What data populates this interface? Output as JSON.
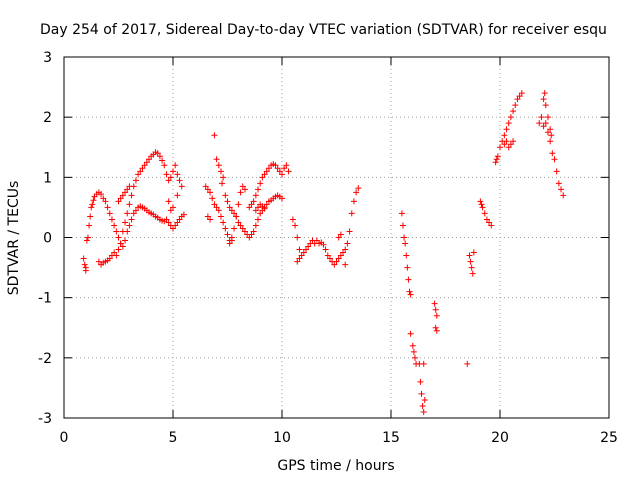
{
  "chart_data": {
    "type": "scatter",
    "title": "Day 254 of 2017, Sidereal Day-to-day VTEC variation (SDTVAR) for receiver esqu",
    "xlabel": "GPS time / hours",
    "ylabel": "SDTVAR / TECUs",
    "xlim": [
      0,
      25
    ],
    "ylim": [
      -3,
      3
    ],
    "xticks": [
      0,
      5,
      10,
      15,
      20,
      25
    ],
    "yticks": [
      -3,
      -2,
      -1,
      0,
      1,
      2,
      3
    ],
    "grid": true,
    "marker": "+",
    "series": [
      {
        "color": "#ff0000",
        "points": [
          [
            0.9,
            -0.35
          ],
          [
            0.95,
            -0.45
          ],
          [
            1.0,
            -0.55
          ],
          [
            1.0,
            -0.5
          ],
          [
            1.05,
            -0.05
          ],
          [
            1.1,
            0.0
          ],
          [
            1.15,
            0.2
          ],
          [
            1.2,
            0.35
          ],
          [
            1.25,
            0.5
          ],
          [
            1.3,
            0.55
          ],
          [
            1.35,
            0.62
          ],
          [
            1.4,
            0.68
          ],
          [
            1.5,
            0.72
          ],
          [
            1.6,
            0.75
          ],
          [
            1.7,
            0.72
          ],
          [
            1.8,
            0.65
          ],
          [
            1.9,
            0.6
          ],
          [
            2.0,
            0.5
          ],
          [
            2.1,
            0.4
          ],
          [
            2.2,
            0.3
          ],
          [
            2.3,
            0.2
          ],
          [
            2.4,
            0.1
          ],
          [
            2.5,
            0.0
          ],
          [
            2.6,
            -0.1
          ],
          [
            2.7,
            -0.15
          ],
          [
            2.8,
            -0.05
          ],
          [
            2.9,
            0.1
          ],
          [
            3.0,
            0.2
          ],
          [
            3.1,
            0.3
          ],
          [
            3.2,
            0.4
          ],
          [
            3.3,
            0.45
          ],
          [
            3.4,
            0.5
          ],
          [
            3.5,
            0.52
          ],
          [
            3.6,
            0.5
          ],
          [
            3.7,
            0.48
          ],
          [
            3.8,
            0.45
          ],
          [
            3.9,
            0.42
          ],
          [
            4.0,
            0.4
          ],
          [
            4.1,
            0.38
          ],
          [
            4.2,
            0.35
          ],
          [
            4.3,
            0.33
          ],
          [
            4.4,
            0.3
          ],
          [
            4.5,
            0.28
          ],
          [
            4.6,
            0.27
          ],
          [
            4.7,
            0.3
          ],
          [
            4.8,
            0.25
          ],
          [
            4.9,
            0.2
          ],
          [
            5.0,
            0.15
          ],
          [
            5.1,
            0.2
          ],
          [
            5.2,
            0.25
          ],
          [
            5.3,
            0.3
          ],
          [
            5.4,
            0.35
          ],
          [
            5.5,
            0.38
          ],
          [
            1.6,
            -0.4
          ],
          [
            1.7,
            -0.45
          ],
          [
            1.8,
            -0.42
          ],
          [
            1.9,
            -0.4
          ],
          [
            2.0,
            -0.38
          ],
          [
            2.1,
            -0.35
          ],
          [
            2.2,
            -0.3
          ],
          [
            2.3,
            -0.25
          ],
          [
            2.4,
            -0.3
          ],
          [
            2.5,
            -0.2
          ],
          [
            2.6,
            -0.1
          ],
          [
            2.7,
            0.1
          ],
          [
            2.8,
            0.25
          ],
          [
            2.9,
            0.4
          ],
          [
            3.0,
            0.55
          ],
          [
            3.1,
            0.7
          ],
          [
            3.2,
            0.85
          ],
          [
            3.3,
            0.95
          ],
          [
            3.4,
            1.05
          ],
          [
            3.5,
            1.1
          ],
          [
            3.6,
            1.15
          ],
          [
            3.7,
            1.2
          ],
          [
            3.8,
            1.25
          ],
          [
            3.9,
            1.3
          ],
          [
            4.0,
            1.35
          ],
          [
            4.1,
            1.38
          ],
          [
            4.2,
            1.42
          ],
          [
            4.3,
            1.4
          ],
          [
            4.4,
            1.35
          ],
          [
            4.5,
            1.28
          ],
          [
            4.6,
            1.2
          ],
          [
            4.7,
            1.05
          ],
          [
            4.8,
            0.95
          ],
          [
            4.9,
            1.0
          ],
          [
            5.0,
            1.1
          ],
          [
            5.1,
            1.2
          ],
          [
            5.2,
            1.05
          ],
          [
            5.3,
            0.95
          ],
          [
            5.4,
            0.85
          ],
          [
            2.5,
            0.6
          ],
          [
            2.6,
            0.65
          ],
          [
            2.7,
            0.7
          ],
          [
            2.8,
            0.75
          ],
          [
            2.9,
            0.8
          ],
          [
            3.0,
            0.85
          ],
          [
            4.8,
            0.6
          ],
          [
            4.9,
            0.45
          ],
          [
            5.0,
            0.5
          ],
          [
            5.2,
            0.7
          ],
          [
            6.5,
            0.85
          ],
          [
            6.6,
            0.8
          ],
          [
            6.7,
            0.75
          ],
          [
            6.8,
            0.65
          ],
          [
            6.9,
            0.55
          ],
          [
            6.6,
            0.35
          ],
          [
            6.7,
            0.3
          ],
          [
            6.9,
            1.7
          ],
          [
            7.0,
            1.3
          ],
          [
            7.1,
            1.2
          ],
          [
            7.2,
            1.1
          ],
          [
            7.3,
            1.0
          ],
          [
            7.25,
            0.9
          ],
          [
            7.0,
            0.5
          ],
          [
            7.1,
            0.45
          ],
          [
            7.2,
            0.35
          ],
          [
            7.3,
            0.25
          ],
          [
            7.4,
            0.15
          ],
          [
            7.5,
            0.05
          ],
          [
            7.6,
            -0.05
          ],
          [
            7.7,
            0.0
          ],
          [
            7.8,
            0.15
          ],
          [
            7.9,
            0.35
          ],
          [
            8.0,
            0.55
          ],
          [
            8.1,
            0.75
          ],
          [
            8.2,
            0.85
          ],
          [
            8.3,
            0.8
          ],
          [
            7.4,
            0.7
          ],
          [
            7.5,
            0.6
          ],
          [
            7.6,
            0.5
          ],
          [
            7.7,
            0.45
          ],
          [
            7.8,
            0.4
          ],
          [
            7.9,
            0.35
          ],
          [
            8.0,
            0.25
          ],
          [
            8.1,
            0.2
          ],
          [
            8.2,
            0.15
          ],
          [
            8.3,
            0.1
          ],
          [
            8.4,
            0.05
          ],
          [
            8.5,
            0.0
          ],
          [
            8.6,
            0.05
          ],
          [
            8.7,
            0.1
          ],
          [
            8.8,
            0.2
          ],
          [
            8.9,
            0.3
          ],
          [
            9.0,
            0.4
          ],
          [
            9.1,
            0.45
          ],
          [
            9.2,
            0.5
          ],
          [
            9.3,
            0.55
          ],
          [
            9.4,
            0.6
          ],
          [
            9.5,
            0.62
          ],
          [
            9.6,
            0.65
          ],
          [
            9.7,
            0.68
          ],
          [
            9.8,
            0.7
          ],
          [
            9.9,
            0.68
          ],
          [
            10.0,
            0.65
          ],
          [
            8.5,
            0.5
          ],
          [
            8.6,
            0.55
          ],
          [
            8.7,
            0.6
          ],
          [
            8.8,
            0.7
          ],
          [
            8.9,
            0.8
          ],
          [
            9.0,
            0.9
          ],
          [
            9.1,
            1.0
          ],
          [
            9.2,
            1.05
          ],
          [
            9.3,
            1.1
          ],
          [
            9.4,
            1.15
          ],
          [
            9.5,
            1.2
          ],
          [
            9.6,
            1.22
          ],
          [
            9.7,
            1.2
          ],
          [
            9.8,
            1.15
          ],
          [
            9.9,
            1.1
          ],
          [
            10.0,
            1.05
          ],
          [
            10.1,
            1.15
          ],
          [
            10.2,
            1.2
          ],
          [
            10.3,
            1.1
          ],
          [
            8.8,
            0.45
          ],
          [
            8.9,
            0.5
          ],
          [
            9.0,
            0.55
          ],
          [
            9.1,
            0.52
          ],
          [
            9.2,
            0.48
          ],
          [
            7.6,
            -0.1
          ],
          [
            7.7,
            -0.05
          ],
          [
            10.5,
            0.3
          ],
          [
            10.6,
            0.2
          ],
          [
            10.7,
            0.0
          ],
          [
            10.8,
            -0.2
          ],
          [
            10.9,
            -0.3
          ],
          [
            11.0,
            -0.25
          ],
          [
            11.1,
            -0.2
          ],
          [
            11.2,
            -0.15
          ],
          [
            11.3,
            -0.1
          ],
          [
            11.4,
            -0.05
          ],
          [
            11.5,
            -0.1
          ],
          [
            11.6,
            -0.05
          ],
          [
            11.7,
            -0.1
          ],
          [
            11.8,
            -0.08
          ],
          [
            11.9,
            -0.12
          ],
          [
            12.0,
            -0.2
          ],
          [
            12.1,
            -0.3
          ],
          [
            12.2,
            -0.35
          ],
          [
            12.3,
            -0.4
          ],
          [
            12.4,
            -0.45
          ],
          [
            12.5,
            -0.4
          ],
          [
            12.6,
            -0.35
          ],
          [
            12.7,
            -0.3
          ],
          [
            12.8,
            -0.25
          ],
          [
            12.9,
            -0.2
          ],
          [
            13.0,
            -0.1
          ],
          [
            13.1,
            0.1
          ],
          [
            13.2,
            0.4
          ],
          [
            13.3,
            0.6
          ],
          [
            13.4,
            0.75
          ],
          [
            13.5,
            0.82
          ],
          [
            10.7,
            -0.4
          ],
          [
            10.8,
            -0.35
          ],
          [
            12.6,
            0.0
          ],
          [
            12.7,
            0.05
          ],
          [
            12.9,
            -0.45
          ],
          [
            15.5,
            0.4
          ],
          [
            15.55,
            0.2
          ],
          [
            15.6,
            0.0
          ],
          [
            15.65,
            -0.1
          ],
          [
            15.7,
            -0.3
          ],
          [
            15.75,
            -0.5
          ],
          [
            15.8,
            -0.7
          ],
          [
            15.85,
            -0.9
          ],
          [
            15.9,
            -0.95
          ],
          [
            15.9,
            -1.6
          ],
          [
            16.0,
            -1.8
          ],
          [
            16.05,
            -1.9
          ],
          [
            16.1,
            -2.0
          ],
          [
            16.15,
            -2.1
          ],
          [
            16.3,
            -2.1
          ],
          [
            16.35,
            -2.4
          ],
          [
            16.4,
            -2.6
          ],
          [
            16.45,
            -2.8
          ],
          [
            16.5,
            -2.9
          ],
          [
            16.55,
            -2.7
          ],
          [
            16.5,
            -2.1
          ],
          [
            17.0,
            -1.1
          ],
          [
            17.05,
            -1.2
          ],
          [
            17.1,
            -1.3
          ],
          [
            17.05,
            -1.5
          ],
          [
            17.1,
            -1.55
          ],
          [
            18.5,
            -2.1
          ],
          [
            18.6,
            -0.3
          ],
          [
            18.65,
            -0.4
          ],
          [
            18.7,
            -0.5
          ],
          [
            18.75,
            -0.6
          ],
          [
            18.8,
            -0.25
          ],
          [
            19.1,
            0.6
          ],
          [
            19.15,
            0.55
          ],
          [
            19.2,
            0.5
          ],
          [
            19.3,
            0.4
          ],
          [
            19.4,
            0.3
          ],
          [
            19.5,
            0.25
          ],
          [
            19.6,
            0.2
          ],
          [
            19.8,
            1.25
          ],
          [
            19.85,
            1.3
          ],
          [
            19.9,
            1.35
          ],
          [
            20.0,
            1.5
          ],
          [
            20.1,
            1.6
          ],
          [
            20.2,
            1.7
          ],
          [
            20.3,
            1.8
          ],
          [
            20.4,
            1.9
          ],
          [
            20.5,
            2.0
          ],
          [
            20.6,
            2.1
          ],
          [
            20.7,
            2.2
          ],
          [
            20.8,
            2.3
          ],
          [
            20.9,
            2.35
          ],
          [
            21.0,
            2.4
          ],
          [
            20.2,
            1.55
          ],
          [
            20.3,
            1.6
          ],
          [
            20.4,
            1.5
          ],
          [
            20.5,
            1.55
          ],
          [
            20.6,
            1.6
          ],
          [
            21.8,
            1.9
          ],
          [
            21.9,
            2.0
          ],
          [
            22.0,
            2.3
          ],
          [
            22.05,
            2.4
          ],
          [
            22.1,
            2.2
          ],
          [
            22.2,
            2.0
          ],
          [
            22.3,
            1.8
          ],
          [
            22.35,
            1.7
          ],
          [
            22.4,
            1.4
          ],
          [
            22.5,
            1.3
          ],
          [
            22.6,
            1.1
          ],
          [
            22.7,
            0.9
          ],
          [
            22.8,
            0.8
          ],
          [
            22.9,
            0.7
          ],
          [
            22.0,
            1.85
          ],
          [
            22.1,
            1.9
          ],
          [
            22.2,
            1.75
          ],
          [
            22.3,
            1.6
          ]
        ]
      }
    ]
  }
}
